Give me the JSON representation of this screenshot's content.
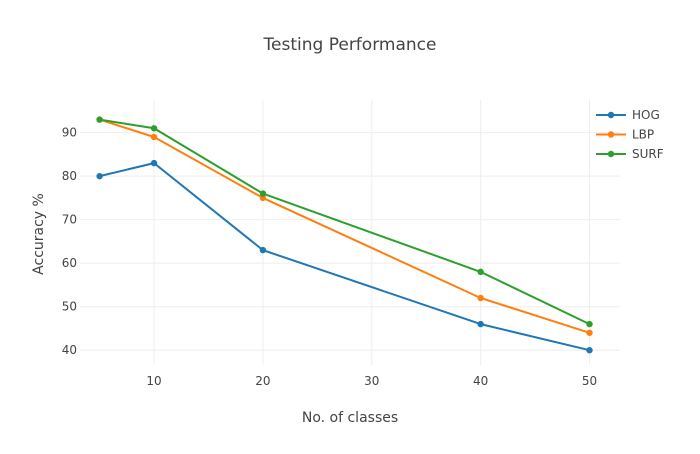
{
  "chart_data": {
    "type": "line",
    "title": "Testing Performance",
    "xlabel": "No. of classes",
    "ylabel": "Accuracy %",
    "x": [
      5,
      10,
      20,
      40,
      50
    ],
    "series": [
      {
        "name": "HOG",
        "color": "#1f77b4",
        "values": [
          80,
          83,
          63,
          46,
          40
        ]
      },
      {
        "name": "LBP",
        "color": "#ff7f0e",
        "values": [
          93,
          89,
          75,
          52,
          44
        ]
      },
      {
        "name": "SURF",
        "color": "#2ca02c",
        "values": [
          93,
          91,
          76,
          58,
          46
        ]
      }
    ],
    "xticks": [
      10,
      20,
      30,
      40,
      50
    ],
    "yticks": [
      40,
      50,
      60,
      70,
      80,
      90
    ],
    "xlim": [
      3.2,
      52.8
    ],
    "ylim": [
      36.6,
      97.5
    ],
    "grid": true,
    "legend_position": "top-right",
    "markers": true
  }
}
